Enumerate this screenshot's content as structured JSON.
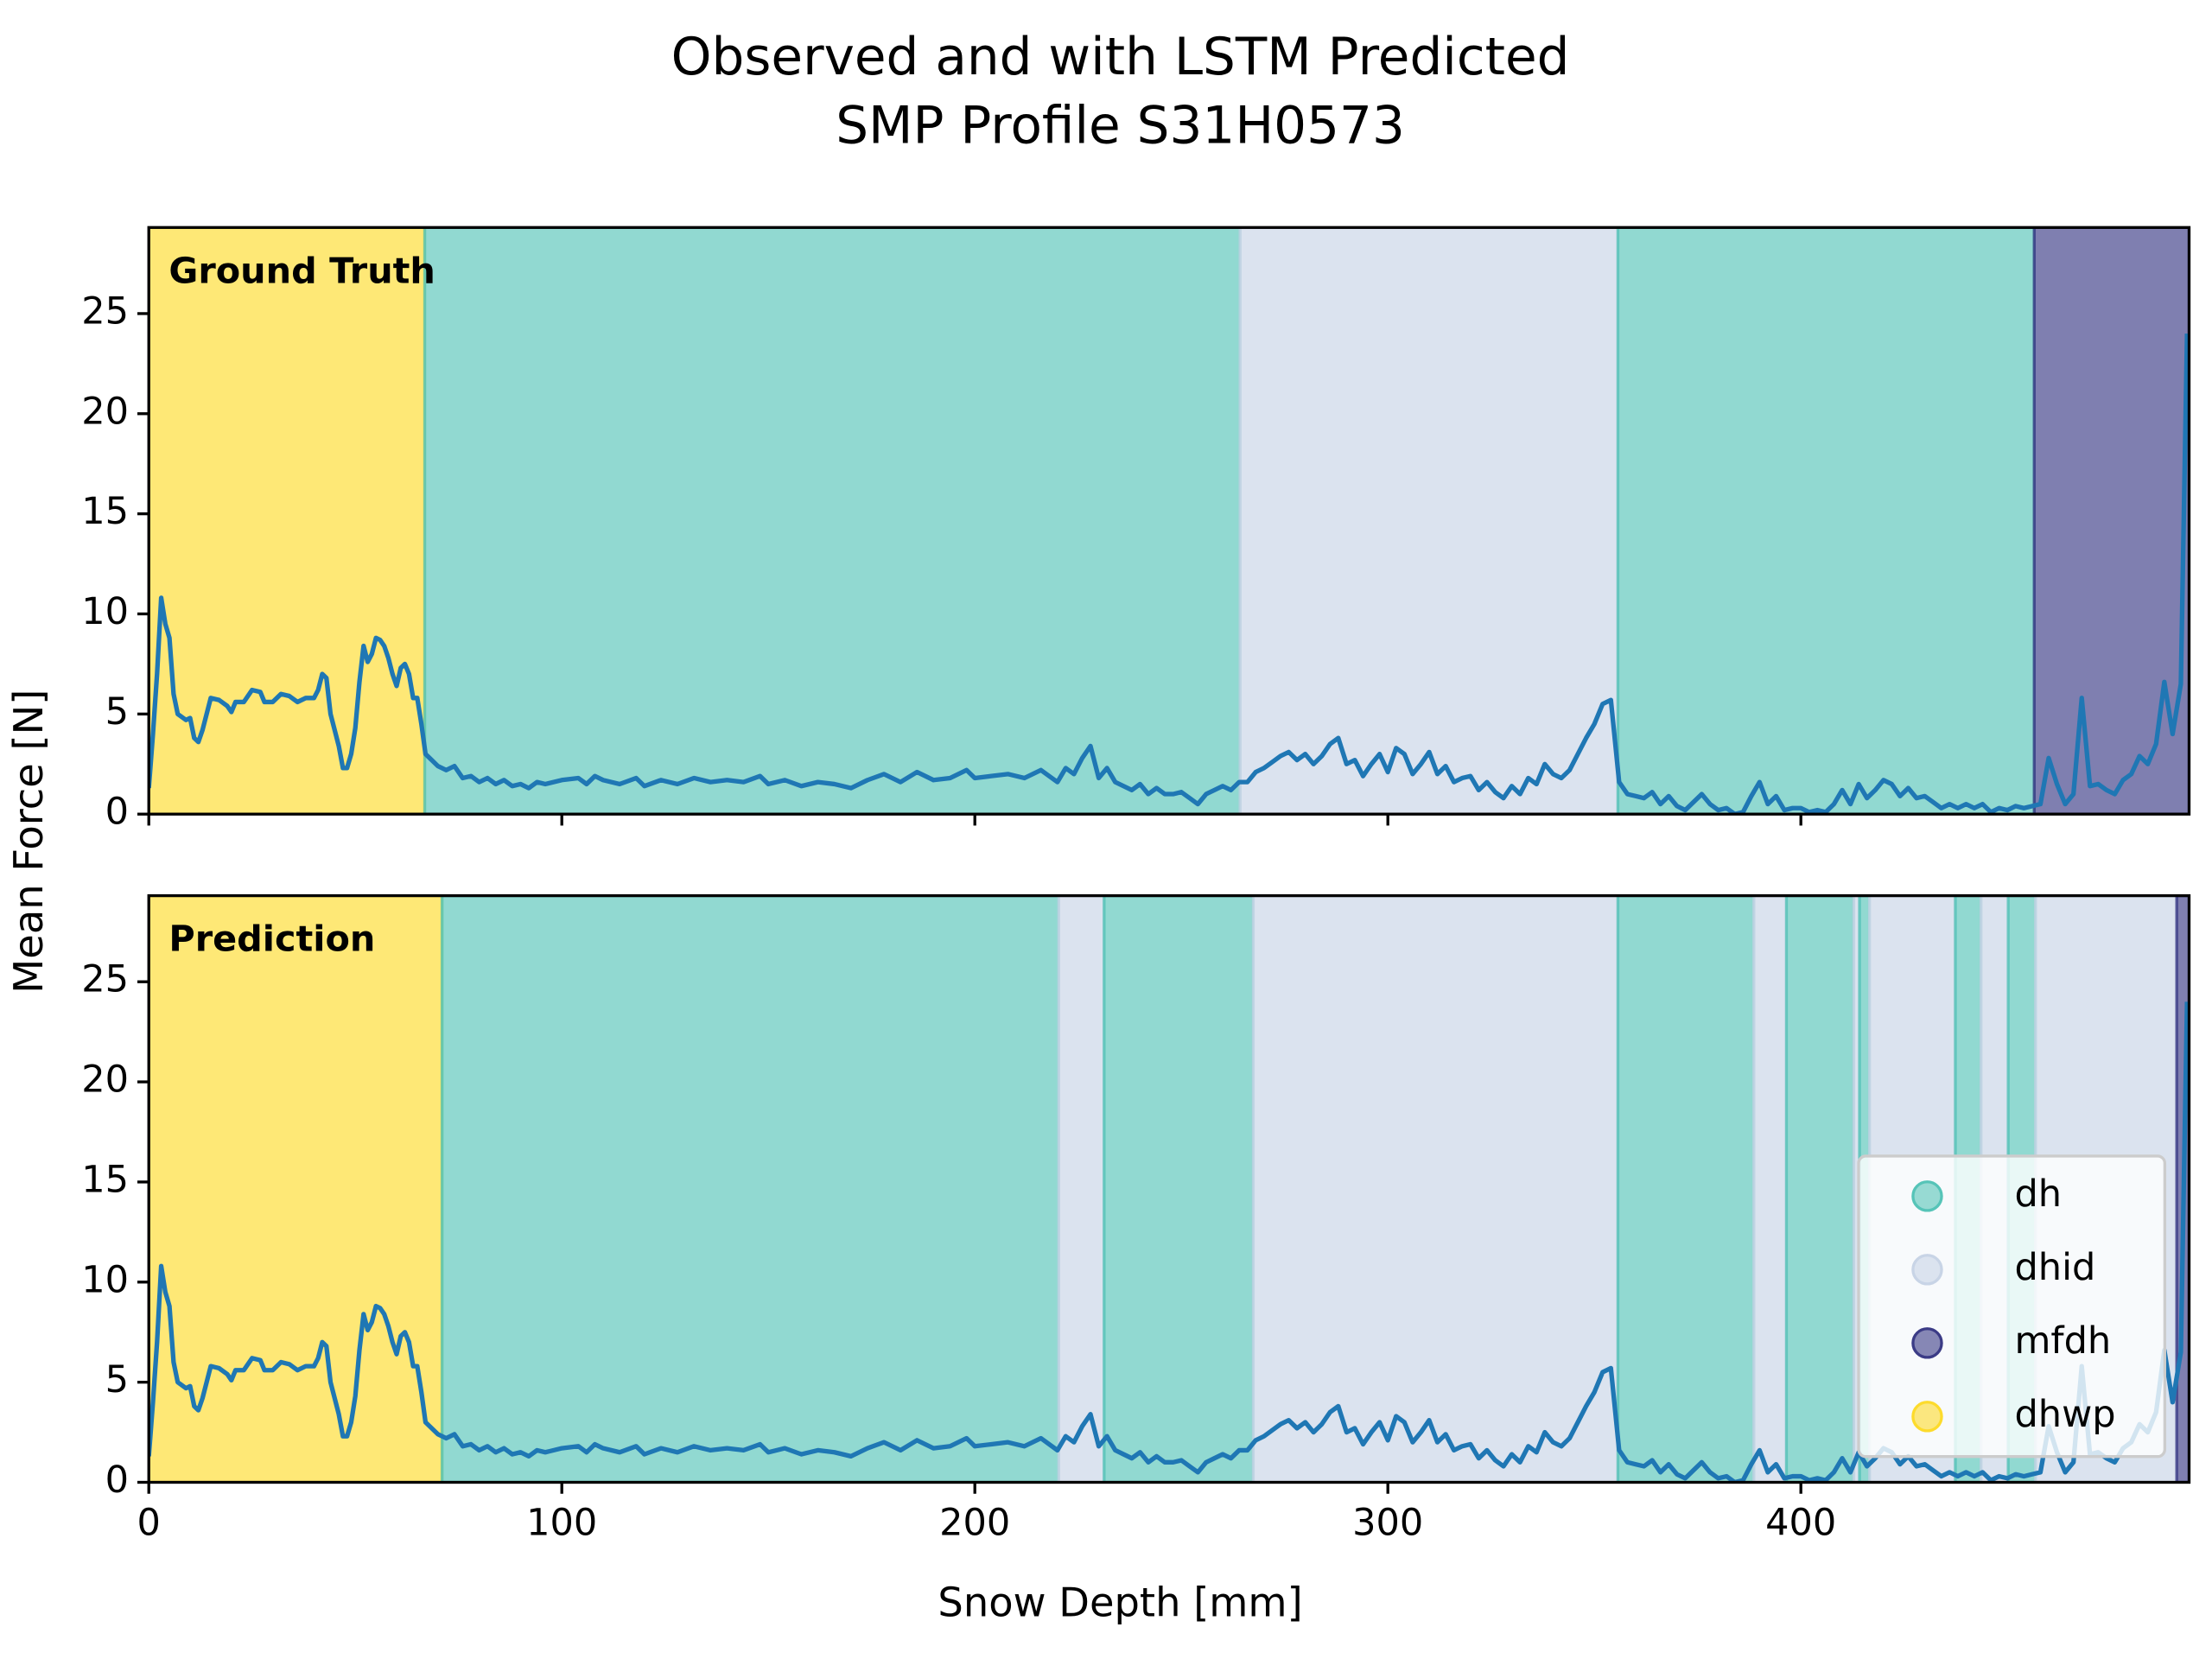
{
  "chart_data": {
    "type": "line",
    "title": "Observed and with LSTM Predicted",
    "subtitle": "SMP Profile S31H0573",
    "xlabel": "Snow Depth [mm]",
    "ylabel": "Mean Force [N]",
    "xlim": [
      0,
      494
    ],
    "ylim": [
      0,
      29.3
    ],
    "xticks": [
      0,
      100,
      200,
      300,
      400
    ],
    "yticks": [
      0,
      5,
      10,
      15,
      20,
      25
    ],
    "line_color": "#1f77b4",
    "series": [
      {
        "name": "dh",
        "color": "#56c4b8"
      },
      {
        "name": "dhid",
        "color": "#c8d4e6"
      },
      {
        "name": "mfdh",
        "color": "#3b3b86"
      },
      {
        "name": "dhwp",
        "color": "#fddb2c"
      }
    ],
    "panels": [
      {
        "label": "Ground Truth",
        "segments": [
          {
            "class": "dhwp",
            "start": 0,
            "end": 66.8
          },
          {
            "class": "dh",
            "start": 66.8,
            "end": 264.2
          },
          {
            "class": "dhid",
            "start": 264.2,
            "end": 355.7
          },
          {
            "class": "dh",
            "start": 355.7,
            "end": 456.5
          },
          {
            "class": "mfdh",
            "start": 456.5,
            "end": 494
          }
        ]
      },
      {
        "label": "Prediction",
        "legend": "lower right",
        "segments": [
          {
            "class": "dhwp",
            "start": 0,
            "end": 71
          },
          {
            "class": "dh",
            "start": 71,
            "end": 220.3
          },
          {
            "class": "dhid",
            "start": 220.3,
            "end": 231.3
          },
          {
            "class": "dh",
            "start": 231.3,
            "end": 267.4
          },
          {
            "class": "dhid",
            "start": 267.4,
            "end": 355.7
          },
          {
            "class": "dh",
            "start": 355.7,
            "end": 388.6
          },
          {
            "class": "dhid",
            "start": 388.6,
            "end": 396.5
          },
          {
            "class": "dh",
            "start": 396.5,
            "end": 412.8
          },
          {
            "class": "dhid",
            "start": 412.8,
            "end": 414.2
          },
          {
            "class": "dh",
            "start": 414.2,
            "end": 416.6
          },
          {
            "class": "dhid",
            "start": 416.6,
            "end": 437.4
          },
          {
            "class": "dh",
            "start": 437.4,
            "end": 443.6
          },
          {
            "class": "dhid",
            "start": 443.6,
            "end": 450.2
          },
          {
            "class": "dh",
            "start": 450.2,
            "end": 456.8
          },
          {
            "class": "dhid",
            "start": 456.8,
            "end": 491
          },
          {
            "class": "mfdh",
            "start": 491,
            "end": 494
          }
        ]
      }
    ],
    "x": [
      0,
      1,
      2,
      3,
      4,
      5,
      6,
      7,
      9,
      10,
      11,
      12,
      13,
      15,
      17,
      19,
      20,
      21,
      23,
      25,
      27,
      28,
      30,
      32,
      34,
      36,
      38,
      40,
      41,
      42,
      43,
      44,
      46,
      47,
      48,
      49,
      50,
      51,
      52,
      53,
      54,
      55,
      56,
      57,
      58,
      59,
      60,
      61,
      62,
      63,
      64,
      65,
      66,
      67,
      68,
      70,
      72,
      74,
      76,
      78,
      80,
      82,
      84,
      86,
      88,
      90,
      92,
      94,
      96,
      100,
      104,
      106,
      108,
      110,
      114,
      118,
      120,
      124,
      128,
      132,
      136,
      140,
      144,
      148,
      150,
      154,
      158,
      162,
      166,
      170,
      174,
      178,
      182,
      186,
      190,
      194,
      198,
      200,
      204,
      208,
      212,
      216,
      220,
      222,
      224,
      226,
      228,
      230,
      232,
      234,
      236,
      238,
      240,
      242,
      244,
      246,
      248,
      250,
      252,
      254,
      256,
      258,
      260,
      262,
      264,
      266,
      268,
      270,
      272,
      274,
      276,
      278,
      280,
      282,
      284,
      286,
      288,
      290,
      292,
      294,
      296,
      298,
      300,
      302,
      304,
      306,
      308,
      310,
      312,
      314,
      316,
      318,
      320,
      322,
      324,
      326,
      328,
      330,
      332,
      334,
      336,
      338,
      340,
      342,
      344,
      346,
      348,
      350,
      352,
      354,
      356,
      358,
      360,
      362,
      364,
      366,
      368,
      370,
      372,
      374,
      376,
      378,
      380,
      382,
      384,
      386,
      388,
      390,
      392,
      394,
      396,
      398,
      400,
      402,
      404,
      406,
      408,
      410,
      412,
      414,
      416,
      418,
      420,
      422,
      424,
      426,
      428,
      430,
      432,
      434,
      436,
      438,
      440,
      442,
      444,
      446,
      448,
      450,
      452,
      454,
      456,
      458,
      460,
      462,
      464,
      466,
      468,
      470,
      472,
      474,
      476,
      478,
      480,
      482,
      484,
      486,
      488,
      490,
      492,
      493.5
    ],
    "values": [
      1.3,
      4,
      7,
      10.8,
      9.5,
      8.8,
      6,
      5,
      4.7,
      4.8,
      3.8,
      3.6,
      4.2,
      5.8,
      5.7,
      5.4,
      5.1,
      5.6,
      5.6,
      6.2,
      6.1,
      5.6,
      5.6,
      6.0,
      5.9,
      5.6,
      5.8,
      5.8,
      6.2,
      7.0,
      6.8,
      5.0,
      3.4,
      2.3,
      2.3,
      3.0,
      4.3,
      6.6,
      8.4,
      7.6,
      8.0,
      8.8,
      8.7,
      8.4,
      7.8,
      7.0,
      6.4,
      7.3,
      7.5,
      7.0,
      5.8,
      5.8,
      4.5,
      3.0,
      2.8,
      2.4,
      2.2,
      2.4,
      1.8,
      1.9,
      1.6,
      1.8,
      1.5,
      1.7,
      1.4,
      1.5,
      1.3,
      1.6,
      1.5,
      1.7,
      1.8,
      1.5,
      1.9,
      1.7,
      1.5,
      1.8,
      1.4,
      1.7,
      1.5,
      1.8,
      1.6,
      1.7,
      1.6,
      1.9,
      1.5,
      1.7,
      1.4,
      1.6,
      1.5,
      1.3,
      1.7,
      2.0,
      1.6,
      2.1,
      1.7,
      1.8,
      2.2,
      1.8,
      1.9,
      2.0,
      1.8,
      2.2,
      1.6,
      2.3,
      2.0,
      2.8,
      3.4,
      1.8,
      2.3,
      1.6,
      1.4,
      1.2,
      1.5,
      1.0,
      1.3,
      1.0,
      1.0,
      1.1,
      0.8,
      0.5,
      1.0,
      1.2,
      1.4,
      1.2,
      1.6,
      1.6,
      2.1,
      2.3,
      2.6,
      2.9,
      3.1,
      2.7,
      3.0,
      2.5,
      2.9,
      3.5,
      3.8,
      2.5,
      2.7,
      1.9,
      2.5,
      3.0,
      2.1,
      3.3,
      3.0,
      2.0,
      2.5,
      3.1,
      2.0,
      2.4,
      1.6,
      1.8,
      1.9,
      1.2,
      1.6,
      1.1,
      0.8,
      1.4,
      1.0,
      1.8,
      1.5,
      2.5,
      2.0,
      1.8,
      2.2,
      3.0,
      3.8,
      4.5,
      5.5,
      5.7,
      1.6,
      1.0,
      0.9,
      0.8,
      1.1,
      0.5,
      0.9,
      0.4,
      0.2,
      0.6,
      1.0,
      0.5,
      0.2,
      0.3,
      0,
      0.1,
      0.9,
      1.6,
      0.5,
      0.9,
      0.2,
      0.3,
      0.3,
      0.1,
      0.2,
      0.1,
      0.5,
      1.2,
      0.5,
      1.5,
      0.8,
      1.2,
      1.7,
      1.5,
      0.9,
      1.3,
      0.8,
      0.9,
      0.6,
      0.3,
      0.5,
      0.3,
      0.5,
      0.3,
      0.5,
      0.1,
      0.3,
      0.2,
      0.4,
      0.3,
      0.4,
      0.5,
      2.8,
      1.5,
      0.5,
      1.0,
      5.8,
      1.4,
      1.5,
      1.2,
      1.0,
      1.7,
      2.0,
      2.9,
      2.5,
      3.5,
      6.6,
      4.0,
      6.5,
      24
    ]
  }
}
